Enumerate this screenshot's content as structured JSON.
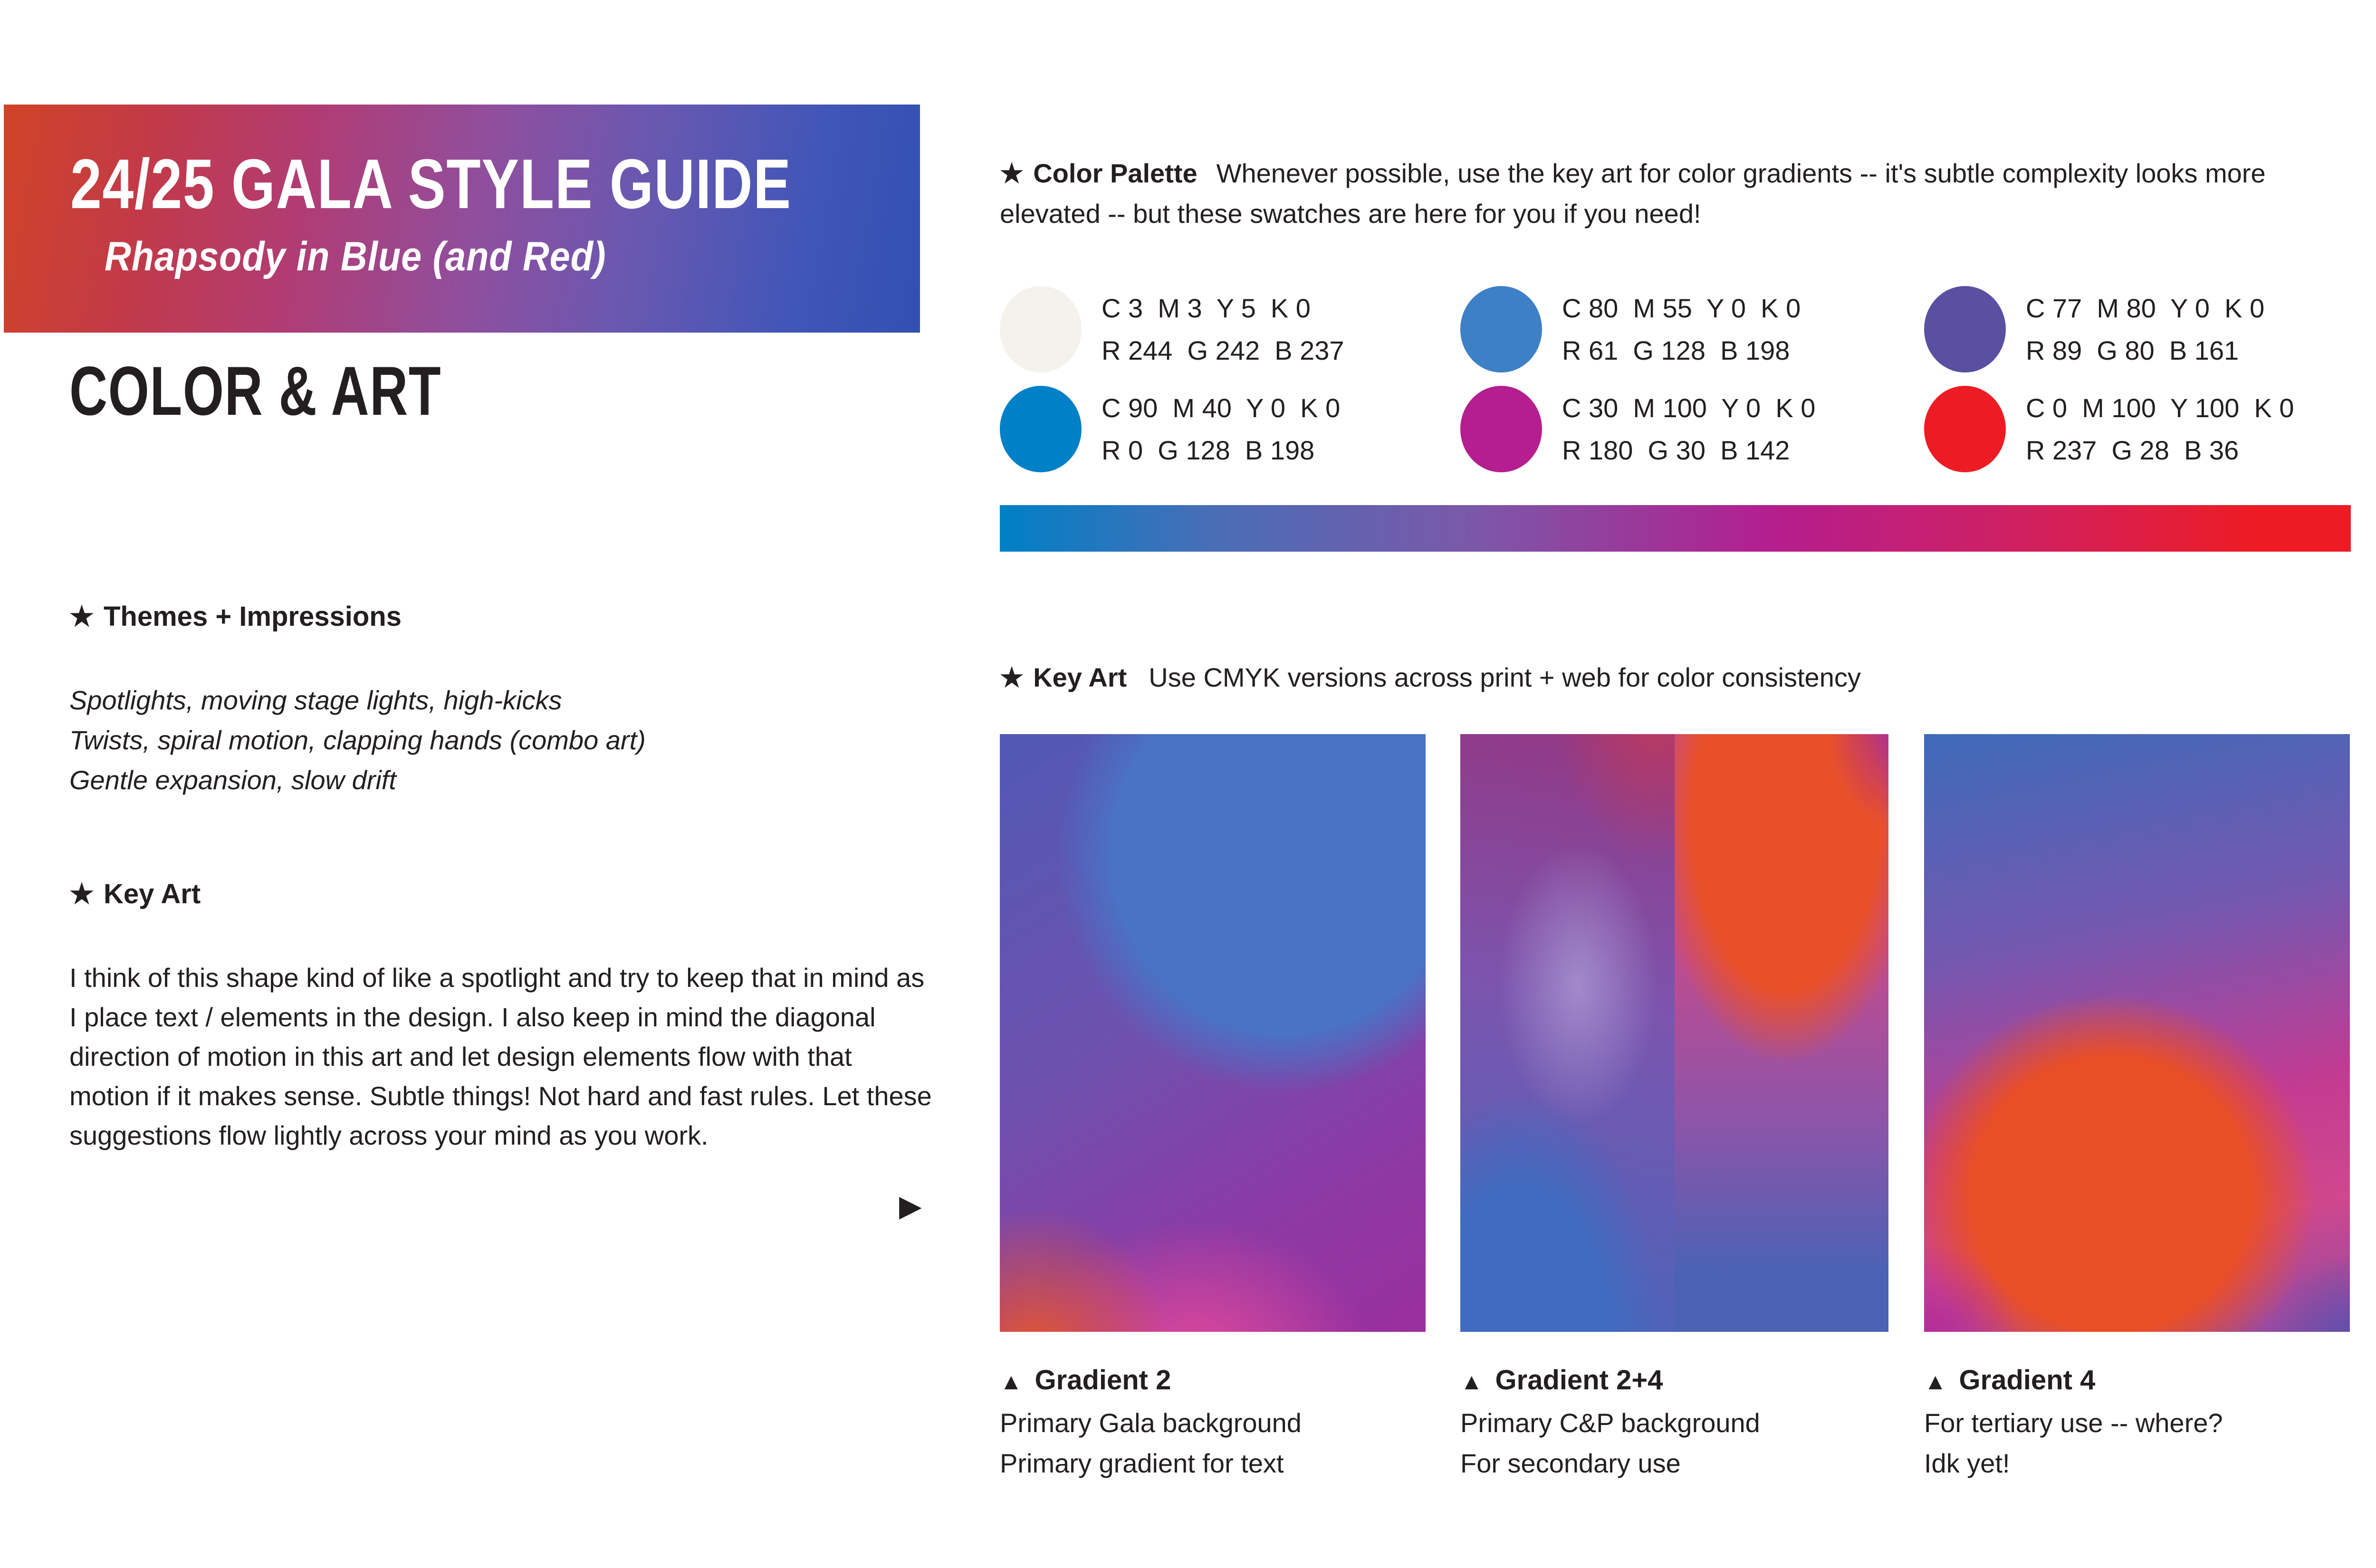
{
  "banner": {
    "title": "24/25 GALA STYLE GUIDE",
    "subtitle": "Rhapsody in Blue (and Red)",
    "gradient_colors": [
      "#D04327",
      "#B13C74",
      "#8F4F9E",
      "#4156B8",
      "#3150B2"
    ]
  },
  "section_title": "COLOR & ART",
  "icons": {
    "star": "★",
    "triangle_up": "▲",
    "triangle_right": "▶"
  },
  "themes": {
    "heading": "Themes + Impressions",
    "lines": [
      "Spotlights, moving stage lights, high-kicks",
      "Twists, spiral motion, clapping hands (combo art)",
      "Gentle expansion, slow drift"
    ]
  },
  "key_art_left": {
    "heading": "Key Art",
    "paragraph": "I think of this shape kind of like a spotlight and try to keep that in mind as I place text / elements in the design. I also keep in mind the diagonal direction of motion in this art and let design elements flow with that motion if it makes sense. Subtle things! Not hard and fast rules. Let these suggestions flow lightly across your mind as you work."
  },
  "color_palette": {
    "heading": "Color Palette",
    "description": "Whenever possible, use the key art for color gradients -- it's subtle complexity looks more elevated -- but these swatches are here for you if you need!",
    "swatches": [
      {
        "hex": "#F4F2ED",
        "cmyk": "C 3  M 3  Y 5  K 0",
        "rgb": "R 244  G 242  B 237"
      },
      {
        "hex": "#3D80C6",
        "cmyk": "C 80  M 55  Y 0  K 0",
        "rgb": "R 61  G 128  B 198"
      },
      {
        "hex": "#5950A1",
        "cmyk": "C 77  M 80  Y 0  K 0",
        "rgb": "R 89  G 80  B 161"
      },
      {
        "hex": "#0080C6",
        "cmyk": "C 90  M 40  Y 0  K 0",
        "rgb": "R 0  G 128  B 198"
      },
      {
        "hex": "#B41E8E",
        "cmyk": "C 30  M 100  Y 0  K 0",
        "rgb": "R 180  G 30  B 142"
      },
      {
        "hex": "#ED1C24",
        "cmyk": "C 0  M 100  Y 100  K 0",
        "rgb": "R 237  G 28  B 36"
      }
    ],
    "gradient_bar_colors": [
      "#0080C6",
      "#7B58A9",
      "#B41E8E",
      "#ED1C24"
    ]
  },
  "key_art_right": {
    "heading": "Key Art",
    "note": "Use CMYK versions across print + web for color consistency"
  },
  "gradients": [
    {
      "name": "Gradient 2",
      "lines": [
        "Primary Gala background",
        "Primary gradient for text"
      ]
    },
    {
      "name": "Gradient 2+4",
      "lines": [
        "Primary C&P background",
        "For secondary use"
      ]
    },
    {
      "name": "Gradient 4",
      "lines": [
        "For tertiary use -- where?",
        "Idk yet!"
      ]
    }
  ]
}
